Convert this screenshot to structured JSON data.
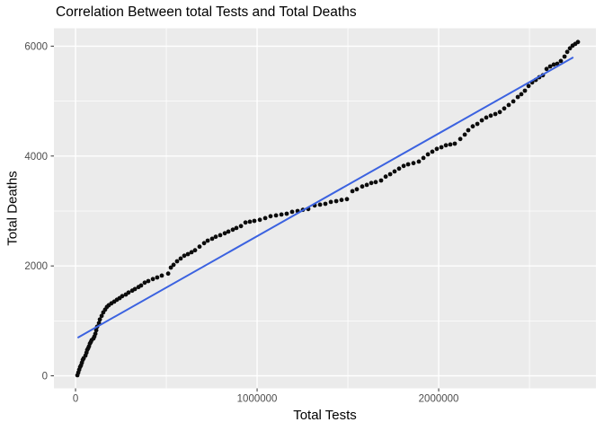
{
  "colors": {
    "panel_background": "#EBEBEB",
    "gridline": "#FFFFFF",
    "point": "#0C0C0C",
    "trend_line": "#3B62E0",
    "tick_mark": "#333333",
    "tick_label": "#4D4D4D",
    "text": "#000000",
    "figure_background": "#FFFFFF"
  },
  "chart_data": {
    "type": "scatter",
    "title": "Correlation Between total Tests and Total Deaths",
    "xlabel": "Total Tests",
    "ylabel": "Total Deaths",
    "legend": "none",
    "grid": "on",
    "xlim": [
      -119000,
      2866000
    ],
    "ylim": [
      -228,
      6325
    ],
    "x_ticks": {
      "values": [
        0,
        1000000,
        2000000
      ],
      "labels": [
        "0",
        "1000000",
        "2000000"
      ],
      "minor": [
        500000,
        1500000,
        2500000
      ]
    },
    "y_ticks": {
      "values": [
        0,
        2000,
        4000,
        6000
      ],
      "labels": [
        "0",
        "2000",
        "4000",
        "6000"
      ],
      "minor": [
        1000,
        3000,
        5000
      ]
    },
    "trend_line": {
      "type": "linear",
      "x1": 15000,
      "y1": 700,
      "x2": 2738000,
      "y2": 5790
    },
    "points": [
      [
        10000,
        10
      ],
      [
        15000,
        60
      ],
      [
        20000,
        110
      ],
      [
        25000,
        160
      ],
      [
        30000,
        190
      ],
      [
        35000,
        240
      ],
      [
        40000,
        290
      ],
      [
        45000,
        320
      ],
      [
        55000,
        370
      ],
      [
        60000,
        420
      ],
      [
        64000,
        470
      ],
      [
        69000,
        500
      ],
      [
        74000,
        535
      ],
      [
        79000,
        585
      ],
      [
        84000,
        615
      ],
      [
        89000,
        650
      ],
      [
        99000,
        680
      ],
      [
        104000,
        715
      ],
      [
        109000,
        765
      ],
      [
        114000,
        830
      ],
      [
        119000,
        895
      ],
      [
        129000,
        960
      ],
      [
        134000,
        1025
      ],
      [
        144000,
        1090
      ],
      [
        153000,
        1155
      ],
      [
        163000,
        1205
      ],
      [
        173000,
        1255
      ],
      [
        183000,
        1285
      ],
      [
        198000,
        1320
      ],
      [
        213000,
        1350
      ],
      [
        228000,
        1385
      ],
      [
        243000,
        1415
      ],
      [
        257000,
        1450
      ],
      [
        277000,
        1480
      ],
      [
        292000,
        1515
      ],
      [
        312000,
        1550
      ],
      [
        327000,
        1580
      ],
      [
        347000,
        1615
      ],
      [
        361000,
        1645
      ],
      [
        381000,
        1695
      ],
      [
        401000,
        1725
      ],
      [
        426000,
        1760
      ],
      [
        450000,
        1790
      ],
      [
        475000,
        1825
      ],
      [
        510000,
        1860
      ],
      [
        525000,
        1970
      ],
      [
        540000,
        2020
      ],
      [
        559000,
        2085
      ],
      [
        579000,
        2135
      ],
      [
        599000,
        2185
      ],
      [
        619000,
        2215
      ],
      [
        639000,
        2250
      ],
      [
        658000,
        2285
      ],
      [
        683000,
        2350
      ],
      [
        708000,
        2415
      ],
      [
        728000,
        2460
      ],
      [
        752000,
        2495
      ],
      [
        772000,
        2530
      ],
      [
        797000,
        2560
      ],
      [
        822000,
        2595
      ],
      [
        842000,
        2625
      ],
      [
        866000,
        2660
      ],
      [
        886000,
        2690
      ],
      [
        911000,
        2725
      ],
      [
        936000,
        2790
      ],
      [
        960000,
        2805
      ],
      [
        985000,
        2820
      ],
      [
        1015000,
        2840
      ],
      [
        1045000,
        2870
      ],
      [
        1074000,
        2905
      ],
      [
        1104000,
        2920
      ],
      [
        1134000,
        2935
      ],
      [
        1163000,
        2950
      ],
      [
        1193000,
        2985
      ],
      [
        1223000,
        3000
      ],
      [
        1252000,
        3020
      ],
      [
        1282000,
        3035
      ],
      [
        1317000,
        3100
      ],
      [
        1347000,
        3115
      ],
      [
        1376000,
        3130
      ],
      [
        1406000,
        3165
      ],
      [
        1436000,
        3180
      ],
      [
        1465000,
        3200
      ],
      [
        1495000,
        3215
      ],
      [
        1525000,
        3360
      ],
      [
        1549000,
        3395
      ],
      [
        1579000,
        3445
      ],
      [
        1604000,
        3475
      ],
      [
        1629000,
        3510
      ],
      [
        1653000,
        3525
      ],
      [
        1683000,
        3555
      ],
      [
        1708000,
        3625
      ],
      [
        1733000,
        3670
      ],
      [
        1757000,
        3720
      ],
      [
        1782000,
        3770
      ],
      [
        1807000,
        3820
      ],
      [
        1832000,
        3850
      ],
      [
        1861000,
        3870
      ],
      [
        1891000,
        3900
      ],
      [
        1916000,
        3965
      ],
      [
        1941000,
        4030
      ],
      [
        1965000,
        4080
      ],
      [
        1990000,
        4130
      ],
      [
        2015000,
        4160
      ],
      [
        2040000,
        4195
      ],
      [
        2064000,
        4210
      ],
      [
        2089000,
        4225
      ],
      [
        2119000,
        4310
      ],
      [
        2144000,
        4390
      ],
      [
        2163000,
        4470
      ],
      [
        2188000,
        4540
      ],
      [
        2213000,
        4585
      ],
      [
        2238000,
        4650
      ],
      [
        2262000,
        4700
      ],
      [
        2287000,
        4735
      ],
      [
        2312000,
        4765
      ],
      [
        2337000,
        4800
      ],
      [
        2361000,
        4865
      ],
      [
        2386000,
        4930
      ],
      [
        2411000,
        4995
      ],
      [
        2436000,
        5075
      ],
      [
        2455000,
        5125
      ],
      [
        2475000,
        5190
      ],
      [
        2495000,
        5275
      ],
      [
        2515000,
        5340
      ],
      [
        2535000,
        5385
      ],
      [
        2554000,
        5435
      ],
      [
        2574000,
        5470
      ],
      [
        2594000,
        5585
      ],
      [
        2614000,
        5630
      ],
      [
        2634000,
        5665
      ],
      [
        2653000,
        5680
      ],
      [
        2673000,
        5730
      ],
      [
        2693000,
        5810
      ],
      [
        2708000,
        5895
      ],
      [
        2723000,
        5960
      ],
      [
        2738000,
        6010
      ],
      [
        2752000,
        6040
      ],
      [
        2767000,
        6075
      ]
    ]
  }
}
